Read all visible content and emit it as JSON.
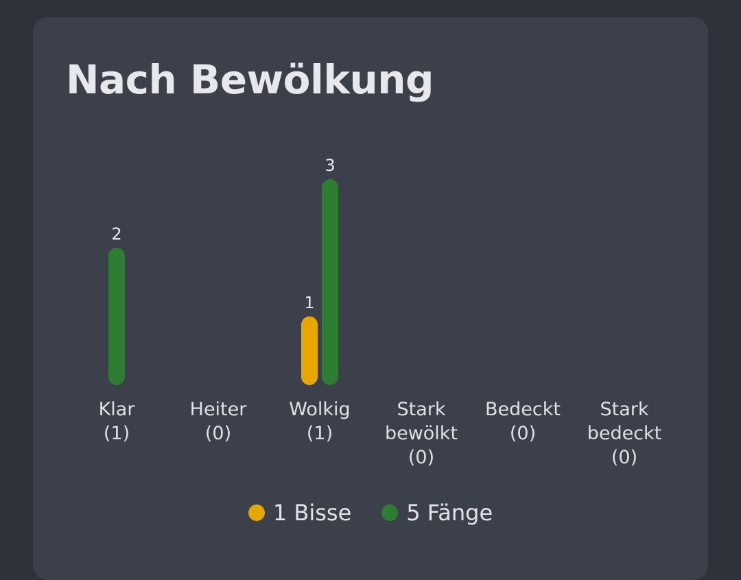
{
  "card": {
    "title": "Nach Bewölkung"
  },
  "colors": {
    "background": "#2e323b",
    "card": "#3b404b",
    "bites": "#e6a800",
    "catches": "#2e7d32",
    "text": "#e6e8ee"
  },
  "chart_data": {
    "type": "bar",
    "title": "Nach Bewölkung",
    "xlabel": "",
    "ylabel": "",
    "ylim": [
      0,
      3
    ],
    "grid": false,
    "legend_position": "bottom-center",
    "categories": [
      {
        "name": "Klar",
        "count_label": "(1)"
      },
      {
        "name": "Heiter",
        "count_label": "(0)"
      },
      {
        "name": "Wolkig",
        "count_label": "(1)"
      },
      {
        "name": "Stark\nbewölkt",
        "count_label": "(0)"
      },
      {
        "name": "Bedeckt",
        "count_label": "(0)"
      },
      {
        "name": "Stark\nbedeckt",
        "count_label": "(0)"
      }
    ],
    "series": [
      {
        "name": "Bisse",
        "color": "#e6a800",
        "values": [
          0,
          0,
          1,
          0,
          0,
          0
        ]
      },
      {
        "name": "Fänge",
        "color": "#2e7d32",
        "values": [
          2,
          0,
          3,
          0,
          0,
          0
        ]
      }
    ],
    "legend": [
      {
        "label": "1 Bisse",
        "color": "#e6a800"
      },
      {
        "label": "5 Fänge",
        "color": "#2e7d32"
      }
    ]
  }
}
